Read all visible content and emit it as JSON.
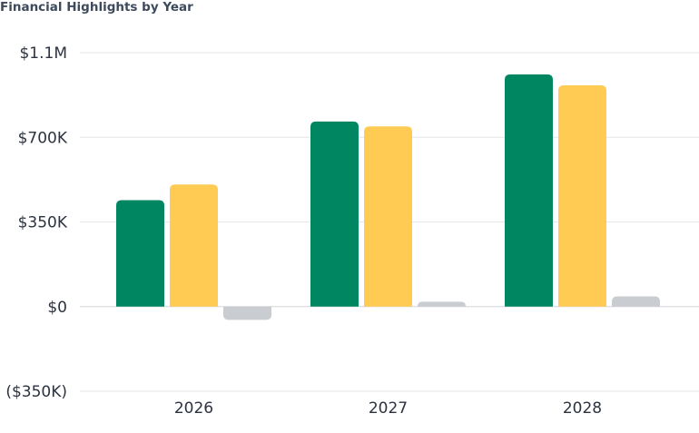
{
  "chart_data": {
    "type": "bar",
    "title": "Financial Highlights by Year",
    "categories": [
      "2026",
      "2027",
      "2028"
    ],
    "series": [
      {
        "values": [
          440000,
          765000,
          960000
        ]
      },
      {
        "values": [
          505000,
          745000,
          915000
        ]
      },
      {
        "values": [
          -55000,
          20000,
          42000
        ]
      }
    ],
    "colors": [
      "#008761",
      "#ffcb52",
      "#c9ccd0"
    ],
    "ylim": [
      -350000,
      1050000
    ],
    "yticks": [
      {
        "value": 1050000,
        "label": "$1.1M"
      },
      {
        "value": 700000,
        "label": "$700K"
      },
      {
        "value": 350000,
        "label": "$350K"
      },
      {
        "value": 0,
        "label": "$0"
      },
      {
        "value": -350000,
        "label": "($350K)"
      }
    ],
    "grid": true,
    "xlabel": "",
    "ylabel": ""
  }
}
